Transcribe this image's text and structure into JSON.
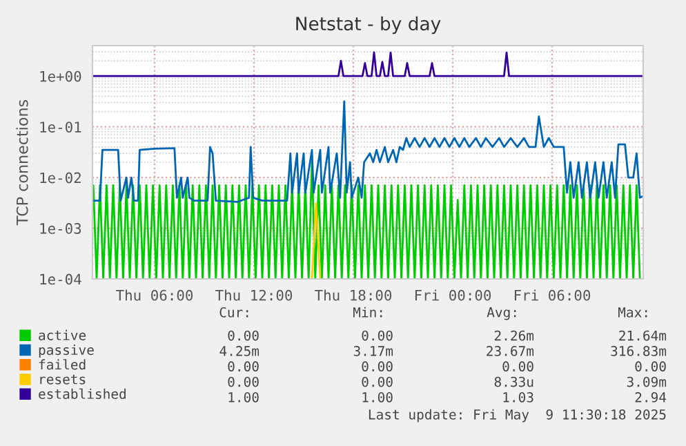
{
  "chart_data": {
    "type": "line",
    "title": "Netstat - by day",
    "ylabel": "TCP connections",
    "log": "y",
    "grid": true,
    "legend": "bottom",
    "marker": "none",
    "line_style": "solid",
    "xlim": [
      "2025-05-08T02:15",
      "2025-05-09T11:30"
    ],
    "xticks": [
      {
        "value": "2025-05-08T06:00",
        "label": "Thu 06:00"
      },
      {
        "value": "2025-05-08T12:00",
        "label": "Thu 12:00"
      },
      {
        "value": "2025-05-08T18:00",
        "label": "Thu 18:00"
      },
      {
        "value": "2025-05-09T00:00",
        "label": "Fri 00:00"
      },
      {
        "value": "2025-05-09T06:00",
        "label": "Fri 06:00"
      }
    ],
    "ylim": [
      0.0001,
      4
    ],
    "yticks": [
      {
        "value": 0.0001,
        "label": "1e-04"
      },
      {
        "value": 0.001,
        "label": "1e-03"
      },
      {
        "value": 0.01,
        "label": "1e-02"
      },
      {
        "value": 0.1,
        "label": "1e-01"
      },
      {
        "value": 1,
        "label": "1e+00"
      }
    ],
    "series": [
      {
        "name": "active",
        "color": "#00cc00",
        "x": [
          "2025-05-08T02:18",
          "2025-05-08T02:30",
          "2025-05-08T02:42",
          "2025-05-08T02:54",
          "2025-05-08T03:06",
          "2025-05-08T03:18",
          "2025-05-08T03:30",
          "2025-05-08T03:42",
          "2025-05-08T03:54",
          "2025-05-08T04:06",
          "2025-05-08T04:18",
          "2025-05-08T04:30",
          "2025-05-08T04:42",
          "2025-05-08T04:54",
          "2025-05-08T05:06",
          "2025-05-08T05:18",
          "2025-05-08T05:30",
          "2025-05-08T05:42",
          "2025-05-08T05:54",
          "2025-05-08T06:06",
          "2025-05-08T06:18",
          "2025-05-08T06:30",
          "2025-05-08T06:42",
          "2025-05-08T06:54",
          "2025-05-08T07:06",
          "2025-05-08T07:18",
          "2025-05-08T07:30",
          "2025-05-08T07:42",
          "2025-05-08T07:54",
          "2025-05-08T08:06",
          "2025-05-08T08:18",
          "2025-05-08T08:30",
          "2025-05-08T08:42",
          "2025-05-08T08:54",
          "2025-05-08T09:06",
          "2025-05-08T09:18",
          "2025-05-08T09:30",
          "2025-05-08T09:42",
          "2025-05-08T09:54",
          "2025-05-08T10:06",
          "2025-05-08T10:18",
          "2025-05-08T10:30",
          "2025-05-08T10:42",
          "2025-05-08T10:54",
          "2025-05-08T11:06",
          "2025-05-08T11:18",
          "2025-05-08T11:30",
          "2025-05-08T11:42",
          "2025-05-08T11:54",
          "2025-05-08T12:06",
          "2025-05-08T12:18",
          "2025-05-08T12:30",
          "2025-05-08T12:42",
          "2025-05-08T12:54",
          "2025-05-08T13:06",
          "2025-05-08T13:18",
          "2025-05-08T13:30",
          "2025-05-08T13:42",
          "2025-05-08T13:54",
          "2025-05-08T14:06",
          "2025-05-08T14:18",
          "2025-05-08T14:30",
          "2025-05-08T14:42",
          "2025-05-08T14:54",
          "2025-05-08T15:06",
          "2025-05-08T15:18",
          "2025-05-08T15:30",
          "2025-05-08T15:42",
          "2025-05-08T15:54",
          "2025-05-08T16:06",
          "2025-05-08T16:18",
          "2025-05-08T16:30",
          "2025-05-08T16:42",
          "2025-05-08T16:54",
          "2025-05-08T17:06",
          "2025-05-08T17:18",
          "2025-05-08T17:30",
          "2025-05-08T17:42",
          "2025-05-08T17:54",
          "2025-05-08T18:06",
          "2025-05-08T18:18",
          "2025-05-08T18:30",
          "2025-05-08T18:42",
          "2025-05-08T18:54",
          "2025-05-08T19:06",
          "2025-05-08T19:18",
          "2025-05-08T19:30",
          "2025-05-08T19:42",
          "2025-05-08T19:54",
          "2025-05-08T20:06",
          "2025-05-08T20:18",
          "2025-05-08T20:30",
          "2025-05-08T20:42",
          "2025-05-08T20:54",
          "2025-05-08T21:06",
          "2025-05-08T21:18",
          "2025-05-08T21:30",
          "2025-05-08T21:42",
          "2025-05-08T21:54",
          "2025-05-08T22:06",
          "2025-05-08T22:18",
          "2025-05-08T22:30",
          "2025-05-08T22:42",
          "2025-05-08T22:54",
          "2025-05-08T23:06",
          "2025-05-08T23:18",
          "2025-05-08T23:30",
          "2025-05-08T23:42",
          "2025-05-08T23:54",
          "2025-05-09T00:06",
          "2025-05-09T00:18",
          "2025-05-09T00:30",
          "2025-05-09T00:42",
          "2025-05-09T00:54",
          "2025-05-09T01:06",
          "2025-05-09T01:18",
          "2025-05-09T01:30",
          "2025-05-09T01:42",
          "2025-05-09T01:54",
          "2025-05-09T02:06",
          "2025-05-09T02:18",
          "2025-05-09T02:30",
          "2025-05-09T02:42",
          "2025-05-09T02:54",
          "2025-05-09T03:06",
          "2025-05-09T03:18",
          "2025-05-09T03:30",
          "2025-05-09T03:42",
          "2025-05-09T03:54",
          "2025-05-09T04:06",
          "2025-05-09T04:18",
          "2025-05-09T04:30",
          "2025-05-09T04:42",
          "2025-05-09T04:54",
          "2025-05-09T05:06",
          "2025-05-09T05:18",
          "2025-05-09T05:30",
          "2025-05-09T05:42",
          "2025-05-09T05:54",
          "2025-05-09T06:06",
          "2025-05-09T06:18",
          "2025-05-09T06:30",
          "2025-05-09T06:42",
          "2025-05-09T06:54",
          "2025-05-09T07:06",
          "2025-05-09T07:18",
          "2025-05-09T07:30",
          "2025-05-09T07:42",
          "2025-05-09T07:54",
          "2025-05-09T08:06",
          "2025-05-09T08:18",
          "2025-05-09T08:30",
          "2025-05-09T08:42",
          "2025-05-09T08:54",
          "2025-05-09T09:06",
          "2025-05-09T09:18",
          "2025-05-09T09:30",
          "2025-05-09T09:42",
          "2025-05-09T09:54",
          "2025-05-09T10:06",
          "2025-05-09T10:18",
          "2025-05-09T10:30",
          "2025-05-09T10:42",
          "2025-05-09T10:54",
          "2025-05-09T11:06",
          "2025-05-09T11:18"
        ],
        "values": [
          0.007,
          0.0001,
          0.007,
          0.0001,
          0.007,
          0.0001,
          0.007,
          0.0001,
          0.007,
          0.0001,
          0.007,
          0.0001,
          0.007,
          0.0001,
          0.007,
          0.0001,
          0.007,
          0.0001,
          0.007,
          0.0001,
          0.007,
          0.0001,
          0.007,
          0.0001,
          0.007,
          0.0001,
          0.007,
          0.0001,
          0.007,
          0.0001,
          0.007,
          0.0001,
          0.007,
          0.0001,
          0.007,
          0.0001,
          0.007,
          0.0001,
          0.007,
          0.0001,
          0.007,
          0.0001,
          0.007,
          0.0001,
          0.007,
          0.0001,
          0.007,
          0.0001,
          0.007,
          0.0001,
          0.007,
          0.0001,
          0.007,
          0.0001,
          0.007,
          0.0001,
          0.007,
          0.0001,
          0.007,
          0.0001,
          0.007,
          0.0001,
          0.007,
          0.0001,
          0.007,
          0.0001,
          0.02,
          0.0001,
          0.007,
          0.0001,
          0.007,
          0.0001,
          0.007,
          0.0001,
          0.007,
          0.0001,
          0.007,
          0.0001,
          0.007,
          0.0001,
          0.007,
          0.0001,
          0.007,
          0.0001,
          0.007,
          0.0001,
          0.007,
          0.0001,
          0.007,
          0.0001,
          0.007,
          0.0001,
          0.007,
          0.0001,
          0.007,
          0.0001,
          0.007,
          0.0001,
          0.007,
          0.0001,
          0.007,
          0.0001,
          0.007,
          0.0001,
          0.007,
          0.0001,
          0.007,
          0.0001,
          0.007,
          0.0001,
          0.0036,
          0.0001,
          0.007,
          0.0001,
          0.007,
          0.0001,
          0.007,
          0.0001,
          0.007,
          0.0001,
          0.007,
          0.0001,
          0.007,
          0.0001,
          0.007,
          0.0001,
          0.007,
          0.0001,
          0.007,
          0.0001,
          0.007,
          0.0001,
          0.007,
          0.0001,
          0.007,
          0.0001,
          0.007,
          0.0001,
          0.007,
          0.0001,
          0.007,
          0.0001,
          0.007,
          0.0001,
          0.007,
          0.0001,
          0.007,
          0.0001,
          0.007,
          0.0001,
          0.007,
          0.0001,
          0.007,
          0.0001,
          0.007,
          0.0001,
          0.007,
          0.0001,
          0.007,
          0.0001,
          0.007,
          0.0001,
          0.007,
          0.0001,
          0.007,
          0.0001
        ]
      },
      {
        "name": "passive",
        "color": "#0066b3",
        "x": [
          "2025-05-08T02:15",
          "2025-05-08T02:42",
          "2025-05-08T02:51",
          "2025-05-08T03:48",
          "2025-05-08T03:57",
          "2025-05-08T04:18",
          "2025-05-08T04:24",
          "2025-05-08T04:36",
          "2025-05-08T04:45",
          "2025-05-08T05:00",
          "2025-05-08T05:06",
          "2025-05-08T06:00",
          "2025-05-08T07:12",
          "2025-05-08T07:21",
          "2025-05-08T07:36",
          "2025-05-08T07:42",
          "2025-05-08T08:00",
          "2025-05-08T08:06",
          "2025-05-08T08:24",
          "2025-05-08T09:12",
          "2025-05-08T09:21",
          "2025-05-08T09:30",
          "2025-05-08T09:42",
          "2025-05-08T11:00",
          "2025-05-08T11:42",
          "2025-05-08T11:48",
          "2025-05-08T11:57",
          "2025-05-08T12:30",
          "2025-05-08T14:00",
          "2025-05-08T14:12",
          "2025-05-08T14:18",
          "2025-05-08T14:36",
          "2025-05-08T14:42",
          "2025-05-08T15:00",
          "2025-05-08T15:06",
          "2025-05-08T15:30",
          "2025-05-08T15:36",
          "2025-05-08T16:00",
          "2025-05-08T16:06",
          "2025-05-08T16:30",
          "2025-05-08T16:36",
          "2025-05-08T17:00",
          "2025-05-08T17:12",
          "2025-05-08T17:27",
          "2025-05-08T17:36",
          "2025-05-08T17:48",
          "2025-05-08T17:54",
          "2025-05-08T18:18",
          "2025-05-08T18:30",
          "2025-05-08T18:39",
          "2025-05-08T19:00",
          "2025-05-08T19:12",
          "2025-05-08T19:24",
          "2025-05-08T19:36",
          "2025-05-08T19:54",
          "2025-05-08T20:06",
          "2025-05-08T20:24",
          "2025-05-08T20:36",
          "2025-05-08T20:48",
          "2025-05-08T21:00",
          "2025-05-08T21:12",
          "2025-05-08T21:24",
          "2025-05-08T21:42",
          "2025-05-08T22:00",
          "2025-05-08T22:18",
          "2025-05-08T22:36",
          "2025-05-08T22:54",
          "2025-05-08T23:12",
          "2025-05-08T23:30",
          "2025-05-08T23:48",
          "2025-05-09T00:06",
          "2025-05-09T00:24",
          "2025-05-09T00:42",
          "2025-05-09T01:00",
          "2025-05-09T01:24",
          "2025-05-09T01:42",
          "2025-05-09T02:00",
          "2025-05-09T02:24",
          "2025-05-09T02:48",
          "2025-05-09T03:06",
          "2025-05-09T03:30",
          "2025-05-09T03:54",
          "2025-05-09T04:18",
          "2025-05-09T04:36",
          "2025-05-09T05:00",
          "2025-05-09T05:12",
          "2025-05-09T05:30",
          "2025-05-09T05:48",
          "2025-05-09T06:06",
          "2025-05-09T06:42",
          "2025-05-09T06:54",
          "2025-05-09T07:06",
          "2025-05-09T07:18",
          "2025-05-09T07:36",
          "2025-05-09T07:48",
          "2025-05-09T08:06",
          "2025-05-09T08:18",
          "2025-05-09T08:36",
          "2025-05-09T08:48",
          "2025-05-09T09:06",
          "2025-05-09T09:18",
          "2025-05-09T09:36",
          "2025-05-09T09:48",
          "2025-05-09T10:00",
          "2025-05-09T10:24",
          "2025-05-09T10:36",
          "2025-05-09T10:54",
          "2025-05-09T11:06",
          "2025-05-09T11:18",
          "2025-05-09T11:30"
        ],
        "values": [
          0.0035,
          0.0035,
          0.035,
          0.035,
          0.0035,
          0.01,
          0.004,
          0.01,
          0.0035,
          0.0035,
          0.035,
          0.037,
          0.038,
          0.004,
          0.01,
          0.004,
          0.01,
          0.004,
          0.0035,
          0.0035,
          0.04,
          0.03,
          0.0035,
          0.0033,
          0.004,
          0.04,
          0.004,
          0.0035,
          0.0035,
          0.03,
          0.005,
          0.03,
          0.005,
          0.03,
          0.005,
          0.035,
          0.005,
          0.035,
          0.005,
          0.04,
          0.005,
          0.03,
          0.004,
          0.3168,
          0.005,
          0.02,
          0.004,
          0.01,
          0.004,
          0.02,
          0.03,
          0.02,
          0.035,
          0.02,
          0.04,
          0.02,
          0.035,
          0.02,
          0.04,
          0.035,
          0.06,
          0.04,
          0.06,
          0.04,
          0.06,
          0.04,
          0.06,
          0.04,
          0.06,
          0.04,
          0.06,
          0.04,
          0.06,
          0.04,
          0.06,
          0.04,
          0.06,
          0.04,
          0.06,
          0.04,
          0.06,
          0.04,
          0.06,
          0.04,
          0.04,
          0.16,
          0.04,
          0.06,
          0.04,
          0.04,
          0.005,
          0.02,
          0.004,
          0.02,
          0.004,
          0.02,
          0.004,
          0.02,
          0.004,
          0.02,
          0.004,
          0.02,
          0.004,
          0.045,
          0.045,
          0.01,
          0.01,
          0.03,
          0.004,
          0.0043
        ]
      },
      {
        "name": "failed",
        "color": "#ff8000"
      },
      {
        "name": "resets",
        "color": "#ffcc00",
        "x": [
          "2025-05-08T15:30",
          "2025-05-08T15:45",
          "2025-05-08T16:00"
        ],
        "values": [
          0.0001,
          0.00309,
          0.0001
        ]
      },
      {
        "name": "established",
        "color": "#330099",
        "x": [
          "2025-05-08T02:15",
          "2025-05-08T17:06",
          "2025-05-08T17:15",
          "2025-05-08T17:24",
          "2025-05-08T18:33",
          "2025-05-08T18:42",
          "2025-05-08T18:51",
          "2025-05-08T19:06",
          "2025-05-08T19:15",
          "2025-05-08T19:24",
          "2025-05-08T19:36",
          "2025-05-08T19:45",
          "2025-05-08T19:54",
          "2025-05-08T20:06",
          "2025-05-08T20:15",
          "2025-05-08T20:24",
          "2025-05-08T21:06",
          "2025-05-08T21:15",
          "2025-05-08T21:24",
          "2025-05-08T22:36",
          "2025-05-08T22:45",
          "2025-05-08T22:54",
          "2025-05-09T03:06",
          "2025-05-09T03:15",
          "2025-05-09T03:24",
          "2025-05-09T11:30"
        ],
        "values": [
          1,
          1,
          2,
          1,
          1,
          1.8,
          1,
          1,
          2.94,
          1,
          1,
          1.9,
          1,
          1,
          2.9,
          1,
          1,
          1.8,
          1,
          1,
          1.8,
          1,
          1,
          2.9,
          1,
          1
        ]
      }
    ],
    "annotations": [
      "Cur:",
      "Min:",
      "Avg:",
      "Max:",
      "0.00",
      "0.00",
      "2.26m",
      "21.64m",
      "4.25m",
      "3.17m",
      "23.67m",
      "316.83m",
      "0.00",
      "0.00",
      "0.00",
      "0.00",
      "0.00",
      "0.00",
      "8.33u",
      "3.09m",
      "1.00",
      "1.00",
      "1.03",
      "2.94",
      "Last update: Fri May  9 11:30:18 2025"
    ]
  }
}
